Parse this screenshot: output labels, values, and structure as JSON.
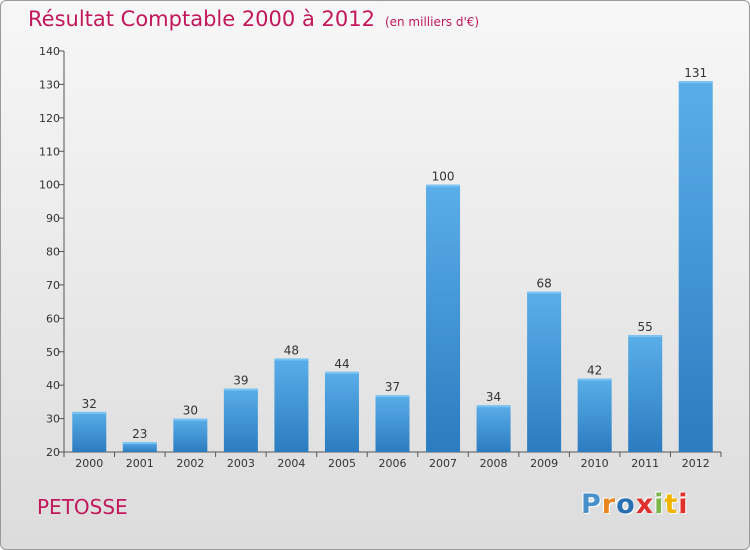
{
  "header": {
    "title": "Résultat Comptable 2000 à 2012",
    "subtitle": "(en milliers d'€)"
  },
  "footer": {
    "city": "PETOSSE",
    "brand": "Proxiti",
    "brand_colors": [
      "#4a90c8",
      "#e8861f",
      "#2b6fb3",
      "#e0312d",
      "#7ab648",
      "#f0b400",
      "#e0312d"
    ]
  },
  "colors": {
    "title": "#c2185b",
    "bar_top": "#5aaee8",
    "bar_bottom": "#2b7cc0"
  },
  "chart_data": {
    "type": "bar",
    "title": "Résultat Comptable 2000 à 2012",
    "subtitle": "(en milliers d'€)",
    "xlabel": "",
    "ylabel": "",
    "categories": [
      "2000",
      "2001",
      "2002",
      "2003",
      "2004",
      "2005",
      "2006",
      "2007",
      "2008",
      "2009",
      "2010",
      "2011",
      "2012"
    ],
    "values": [
      32,
      23,
      30,
      39,
      48,
      44,
      37,
      100,
      34,
      68,
      42,
      55,
      131
    ],
    "ylim": [
      20,
      140
    ],
    "yticks": [
      20,
      30,
      40,
      50,
      60,
      70,
      80,
      90,
      100,
      110,
      120,
      130,
      140
    ],
    "grid": false,
    "legend": "none"
  }
}
